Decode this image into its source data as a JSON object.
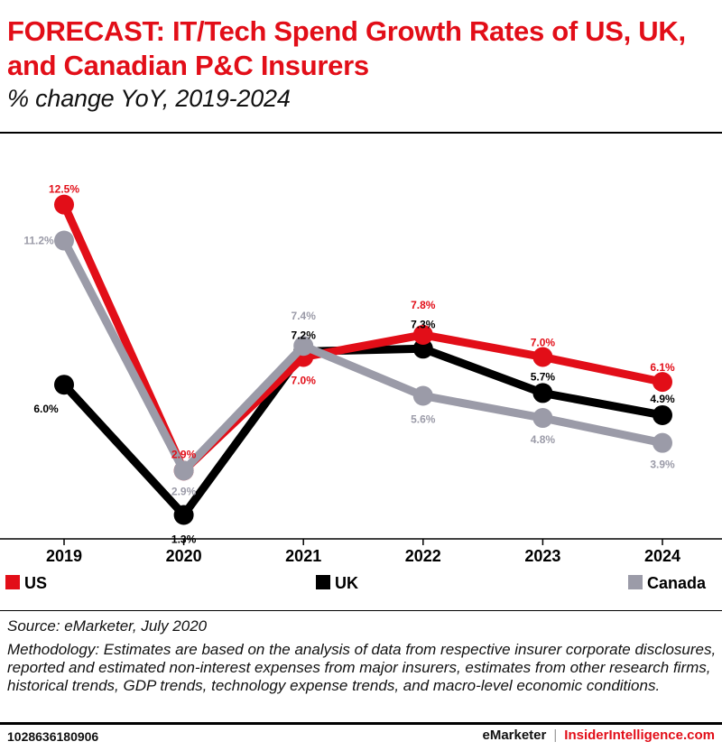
{
  "header": {
    "title": "FORECAST: IT/Tech Spend Growth Rates of US, UK, and Canadian P&C Insurers",
    "subtitle": "% change YoY, 2019-2024"
  },
  "chart_data": {
    "type": "line",
    "x": [
      "2019",
      "2020",
      "2021",
      "2022",
      "2023",
      "2024"
    ],
    "ylim": [
      0,
      14
    ],
    "grid": false,
    "legend_position": "bottom",
    "series": [
      {
        "name": "US",
        "color": "#e20e18",
        "values": [
          12.5,
          2.9,
          7.0,
          7.8,
          7.0,
          6.1
        ],
        "labels": [
          "12.5%",
          "2.9%",
          "7.0%",
          "7.8%",
          "7.0%",
          "6.1%"
        ]
      },
      {
        "name": "UK",
        "color": "#000000",
        "values": [
          6.0,
          1.3,
          7.2,
          7.3,
          5.7,
          4.9
        ],
        "labels": [
          "6.0%",
          "1.3%",
          "7.2%",
          "7.3%",
          "5.7%",
          "4.9%"
        ]
      },
      {
        "name": "Canada",
        "color": "#9b9ba8",
        "values": [
          11.2,
          2.9,
          7.4,
          5.6,
          4.8,
          3.9
        ],
        "labels": [
          "11.2%",
          "2.9%",
          "7.4%",
          "5.6%",
          "4.8%",
          "3.9%"
        ]
      }
    ]
  },
  "footer": {
    "source": "Source: eMarketer, July 2020",
    "methodology": "Methodology: Estimates are based on the analysis of data from respective insurer corporate disclosures, reported and estimated non-interest expenses from major insurers, estimates from other research firms, historical trends, GDP trends, technology expense trends, and macro-level economic conditions.",
    "chart_id": "1028636180906",
    "brand_left": "eMarketer",
    "brand_sep": "|",
    "brand_right": "InsiderIntelligence.com"
  }
}
